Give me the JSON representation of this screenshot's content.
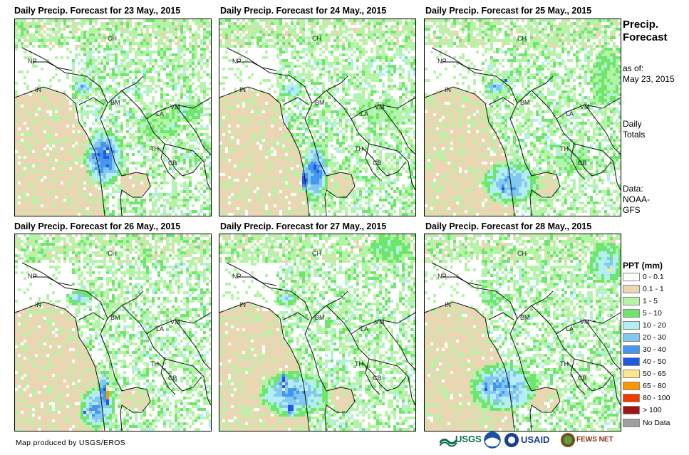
{
  "panels": [
    {
      "title": "Daily Precip. Forecast for 23 May., 2015"
    },
    {
      "title": "Daily Precip. Forecast for 24 May., 2015"
    },
    {
      "title": "Daily Precip. Forecast for 25 May., 2015"
    },
    {
      "title": "Daily Precip. Forecast for 26 May., 2015"
    },
    {
      "title": "Daily Precip. Forecast for 27 May., 2015"
    },
    {
      "title": "Daily Precip. Forecast for 28 May., 2015"
    }
  ],
  "country_labels": {
    "ch": "CH",
    "np": "NP",
    "in": "IN",
    "bm": "BM",
    "la": "LA",
    "vm": "VM",
    "th": "TH",
    "cb": "CB"
  },
  "sidebar": {
    "title_line1": "Precip.",
    "title_line2": "Forecast",
    "asof_line1": "as of:",
    "asof_line2": "May 23, 2015",
    "daily_line1": "Daily",
    "daily_line2": "Totals",
    "data_line1": "Data:",
    "data_line2": "NOAA-",
    "data_line3": "GFS"
  },
  "legend": {
    "title": "PPT (mm)",
    "items": [
      {
        "label": "0 - 0.1",
        "color": "#ffffff"
      },
      {
        "label": "0.1 - 1",
        "color": "#ebd6b4"
      },
      {
        "label": "1 - 5",
        "color": "#b4f5a5"
      },
      {
        "label": "5 - 10",
        "color": "#6ee66e"
      },
      {
        "label": "10 - 20",
        "color": "#b4eef5"
      },
      {
        "label": "20 - 30",
        "color": "#82c8f0"
      },
      {
        "label": "30 - 40",
        "color": "#4696f0"
      },
      {
        "label": "40 - 50",
        "color": "#1e5ae6"
      },
      {
        "label": "50 - 65",
        "color": "#fae68c"
      },
      {
        "label": "65 - 80",
        "color": "#fa9600"
      },
      {
        "label": "80 - 100",
        "color": "#f03c00"
      },
      {
        "label": "> 100",
        "color": "#a01414"
      },
      {
        "label": "No Data",
        "color": "#a0a0a0"
      }
    ]
  },
  "footer": {
    "credit": "Map produced by USGS/EROS",
    "usgs": "USGS",
    "usaid": "USAID",
    "fewsnet": "FEWS NET"
  }
}
